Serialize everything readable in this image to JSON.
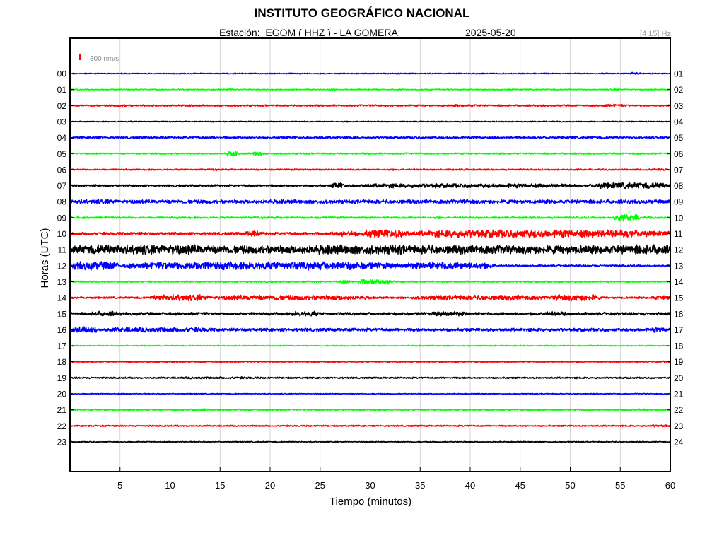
{
  "header": {
    "title": "INSTITUTO GEOGRÁFICO NACIONAL",
    "station_label": "Estación:  EGOM ( HHZ ) - LA GOMERA",
    "date": "2025-05-20",
    "filter_label": "[4 15] Hz"
  },
  "scale_label": "300 nm/s",
  "colors": {
    "blue": "#0000ff",
    "green": "#00ff00",
    "red": "#ff0000",
    "black": "#000000",
    "scale_bar": "#ff0000",
    "grid": "#cccccc"
  },
  "chart_data": {
    "type": "line",
    "title": "INSTITUTO GEOGRÁFICO NACIONAL",
    "xlabel": "Tiempo (minutos)",
    "ylabel": "Horas (UTC)",
    "xlim": [
      0,
      60
    ],
    "x_ticks": [
      5,
      10,
      15,
      20,
      25,
      30,
      35,
      40,
      45,
      50,
      55,
      60
    ],
    "grid": true,
    "left_tick_labels": [
      "00",
      "01",
      "02",
      "03",
      "04",
      "05",
      "06",
      "07",
      "08",
      "09",
      "10",
      "11",
      "12",
      "13",
      "14",
      "15",
      "16",
      "17",
      "18",
      "19",
      "20",
      "21",
      "22",
      "23"
    ],
    "right_tick_labels": [
      "01",
      "02",
      "03",
      "04",
      "05",
      "06",
      "07",
      "08",
      "09",
      "10",
      "11",
      "12",
      "13",
      "14",
      "15",
      "16",
      "17",
      "18",
      "19",
      "20",
      "21",
      "22",
      "23",
      "24"
    ],
    "series": [
      {
        "hour": "00",
        "color": "blue",
        "base": 0.8,
        "bursts": [
          [
            56,
            57,
            2.5
          ]
        ]
      },
      {
        "hour": "01",
        "color": "green",
        "base": 0.8,
        "bursts": [
          [
            15.5,
            16.5,
            1.8
          ],
          [
            54,
            55,
            1.6
          ]
        ]
      },
      {
        "hour": "02",
        "color": "red",
        "base": 1.3,
        "bursts": [
          [
            4.5,
            6,
            1.8
          ],
          [
            9,
            10,
            1.6
          ],
          [
            38,
            41,
            1.8
          ],
          [
            53,
            56,
            2
          ]
        ]
      },
      {
        "hour": "03",
        "color": "black",
        "base": 0.8,
        "bursts": []
      },
      {
        "hour": "04",
        "color": "blue",
        "base": 1.6,
        "bursts": [
          [
            2,
            4,
            1.8
          ],
          [
            46,
            49,
            1.6
          ]
        ]
      },
      {
        "hour": "05",
        "color": "green",
        "base": 1.2,
        "bursts": [
          [
            15.6,
            16.8,
            4
          ],
          [
            18.3,
            19.2,
            4.5
          ]
        ]
      },
      {
        "hour": "06",
        "color": "red",
        "base": 1.2,
        "bursts": [
          [
            14,
            15,
            1.6
          ],
          [
            57,
            60,
            1.6
          ]
        ]
      },
      {
        "hour": "07",
        "color": "black",
        "base": 1.6,
        "bursts": [
          [
            26,
            27.5,
            5
          ],
          [
            27.5,
            52,
            3.2
          ],
          [
            52,
            60,
            4.8
          ]
        ]
      },
      {
        "hour": "08",
        "color": "blue",
        "base": 2.8,
        "bursts": [
          [
            0,
            5,
            3.6
          ],
          [
            39,
            41,
            3.2
          ]
        ]
      },
      {
        "hour": "09",
        "color": "green",
        "base": 1.5,
        "bursts": [
          [
            54.3,
            57,
            5
          ]
        ]
      },
      {
        "hour": "10",
        "color": "red",
        "base": 2.2,
        "bursts": [
          [
            17.5,
            19,
            5
          ],
          [
            26,
            29,
            4.5
          ],
          [
            29,
            34,
            6.5
          ],
          [
            34,
            60,
            6
          ]
        ]
      },
      {
        "hour": "11",
        "color": "black",
        "base": 6.5,
        "bursts": [
          [
            0,
            15,
            7.5
          ],
          [
            23,
            35,
            7.2
          ],
          [
            55,
            60,
            7.5
          ]
        ]
      },
      {
        "hour": "12",
        "color": "blue",
        "base": 1.4,
        "bursts": [
          [
            0,
            5,
            6.5
          ],
          [
            5.5,
            33,
            6.2
          ],
          [
            33,
            42.5,
            5.5
          ]
        ]
      },
      {
        "hour": "13",
        "color": "green",
        "base": 1.2,
        "bursts": [
          [
            27,
            28,
            3.5
          ],
          [
            28.5,
            32.5,
            4
          ]
        ]
      },
      {
        "hour": "14",
        "color": "red",
        "base": 1.5,
        "bursts": [
          [
            8,
            14,
            5
          ],
          [
            14,
            30,
            4
          ],
          [
            34,
            48,
            3.8
          ],
          [
            48,
            53,
            5
          ],
          [
            58,
            60,
            3.5
          ]
        ]
      },
      {
        "hour": "15",
        "color": "black",
        "base": 2.2,
        "bursts": [
          [
            2,
            5,
            3.6
          ],
          [
            22,
            25,
            4
          ],
          [
            36,
            40,
            3.6
          ],
          [
            47,
            50,
            3.4
          ]
        ]
      },
      {
        "hour": "16",
        "color": "blue",
        "base": 2.4,
        "bursts": [
          [
            0,
            3,
            4.5
          ],
          [
            3,
            15,
            3.6
          ],
          [
            58,
            60,
            3.6
          ]
        ]
      },
      {
        "hour": "17",
        "color": "green",
        "base": 0.8,
        "bursts": []
      },
      {
        "hour": "18",
        "color": "red",
        "base": 0.9,
        "bursts": [
          [
            59,
            60,
            1.8
          ]
        ]
      },
      {
        "hour": "19",
        "color": "black",
        "base": 1.2,
        "bursts": [
          [
            10,
            20,
            1.6
          ]
        ]
      },
      {
        "hour": "20",
        "color": "blue",
        "base": 0.7,
        "bursts": []
      },
      {
        "hour": "21",
        "color": "green",
        "base": 1.2,
        "bursts": [
          [
            12,
            14,
            1.8
          ],
          [
            55,
            58,
            1.8
          ]
        ]
      },
      {
        "hour": "22",
        "color": "red",
        "base": 1.1,
        "bursts": [
          [
            58,
            60,
            1.8
          ]
        ]
      },
      {
        "hour": "23",
        "color": "black",
        "base": 0.8,
        "bursts": []
      }
    ]
  }
}
